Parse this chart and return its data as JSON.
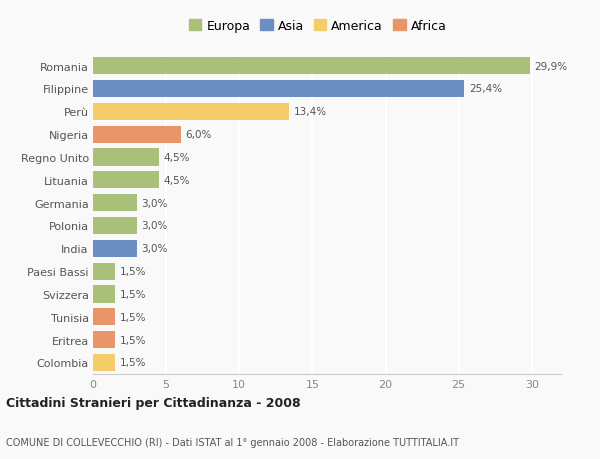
{
  "categories": [
    "Romania",
    "Filippine",
    "Perù",
    "Nigeria",
    "Regno Unito",
    "Lituania",
    "Germania",
    "Polonia",
    "India",
    "Paesi Bassi",
    "Svizzera",
    "Tunisia",
    "Eritrea",
    "Colombia"
  ],
  "values": [
    29.9,
    25.4,
    13.4,
    6.0,
    4.5,
    4.5,
    3.0,
    3.0,
    3.0,
    1.5,
    1.5,
    1.5,
    1.5,
    1.5
  ],
  "labels": [
    "29,9%",
    "25,4%",
    "13,4%",
    "6,0%",
    "4,5%",
    "4,5%",
    "3,0%",
    "3,0%",
    "3,0%",
    "1,5%",
    "1,5%",
    "1,5%",
    "1,5%",
    "1,5%"
  ],
  "colors": [
    "#a8c07a",
    "#6b8fc2",
    "#f5cc6a",
    "#e8956a",
    "#a8c07a",
    "#a8c07a",
    "#a8c07a",
    "#a8c07a",
    "#6b8fc2",
    "#a8c07a",
    "#a8c07a",
    "#e8956a",
    "#e8956a",
    "#f5cc6a"
  ],
  "legend_labels": [
    "Europa",
    "Asia",
    "America",
    "Africa"
  ],
  "legend_colors": [
    "#a8c07a",
    "#6b8fc2",
    "#f5cc6a",
    "#e8956a"
  ],
  "title": "Cittadini Stranieri per Cittadinanza - 2008",
  "subtitle": "COMUNE DI COLLEVECCHIO (RI) - Dati ISTAT al 1° gennaio 2008 - Elaborazione TUTTITALIA.IT",
  "xlim": [
    0,
    32
  ],
  "xticks": [
    0,
    5,
    10,
    15,
    20,
    25,
    30
  ],
  "background_color": "#f9f9f9",
  "grid_color": "#ffffff",
  "bar_height": 0.75
}
